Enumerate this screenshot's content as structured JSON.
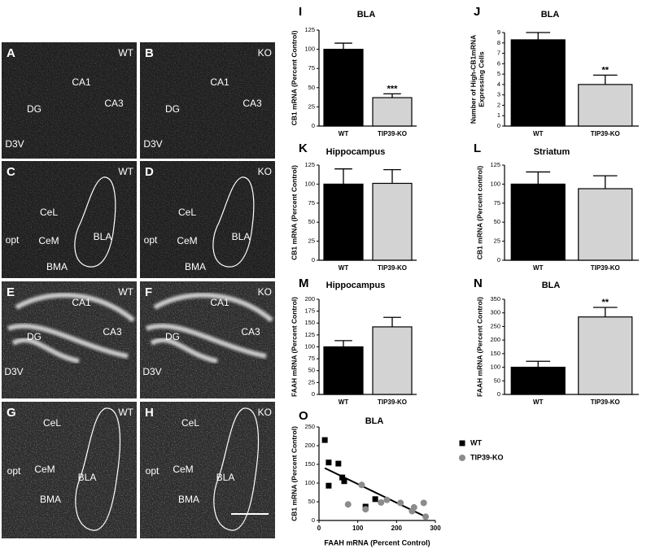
{
  "panels": [
    {
      "letter": "A",
      "genotype": "WT",
      "labels": [
        "CA1",
        "CA3",
        "DG",
        "D3V"
      ]
    },
    {
      "letter": "B",
      "genotype": "KO",
      "labels": [
        "CA1",
        "CA3",
        "DG",
        "D3V"
      ]
    },
    {
      "letter": "C",
      "genotype": "WT",
      "labels": [
        "CeL",
        "CeM",
        "BLA",
        "BMA",
        "opt"
      ]
    },
    {
      "letter": "D",
      "genotype": "KO",
      "labels": [
        "CeL",
        "CeM",
        "BLA",
        "BMA",
        "opt"
      ]
    },
    {
      "letter": "E",
      "genotype": "WT",
      "labels": [
        "CA1",
        "CA3",
        "DG",
        "D3V"
      ]
    },
    {
      "letter": "F",
      "genotype": "KO",
      "labels": [
        "CA1",
        "CA3",
        "DG",
        "D3V"
      ]
    },
    {
      "letter": "G",
      "genotype": "WT",
      "labels": [
        "CeL",
        "CeM",
        "BLA",
        "BMA",
        "opt"
      ]
    },
    {
      "letter": "H",
      "genotype": "KO",
      "labels": [
        "CeL",
        "CeM",
        "BLA",
        "BMA",
        "opt"
      ]
    }
  ],
  "chart_data": [
    {
      "type": "bar",
      "label": "I",
      "title": "BLA",
      "ylabel": "CB1 mRNA (Percent Control)",
      "categories": [
        "WT",
        "TIP39-KO"
      ],
      "values": [
        100,
        37
      ],
      "errors": [
        8,
        5
      ],
      "colors": [
        "#000000",
        "#d3d3d3"
      ],
      "value_annotations": [
        null,
        "***"
      ],
      "ylim": [
        0,
        125
      ],
      "yticks": [
        0,
        25,
        50,
        75,
        100,
        125
      ]
    },
    {
      "type": "bar",
      "label": "J",
      "title": "BLA",
      "ylabel": [
        "Number of High-CB1mRNA",
        "Expressing Cells"
      ],
      "categories": [
        "WT",
        "TIP39-KO"
      ],
      "values": [
        8.3,
        4.0
      ],
      "errors": [
        0.7,
        0.9
      ],
      "colors": [
        "#000000",
        "#d3d3d3"
      ],
      "value_annotations": [
        null,
        "**"
      ],
      "ylim": [
        0,
        9
      ],
      "yticks": [
        0,
        1,
        2,
        3,
        4,
        5,
        6,
        7,
        8,
        9
      ]
    },
    {
      "type": "bar",
      "label": "K",
      "title": "Hippocampus",
      "ylabel": "CB1 mRNA (Percent Control)",
      "categories": [
        "WT",
        "TIP39-KO"
      ],
      "values": [
        100,
        101
      ],
      "errors": [
        20,
        18
      ],
      "colors": [
        "#000000",
        "#d3d3d3"
      ],
      "ylim": [
        0,
        125
      ],
      "yticks": [
        0,
        25,
        50,
        75,
        100,
        125
      ]
    },
    {
      "type": "bar",
      "label": "L",
      "title": "Striatum",
      "ylabel": "CB1 mRNA (Percent control)",
      "categories": [
        "WT",
        "TIP39-KO"
      ],
      "values": [
        100,
        94
      ],
      "errors": [
        16,
        17
      ],
      "colors": [
        "#000000",
        "#d3d3d3"
      ],
      "ylim": [
        0,
        125
      ],
      "yticks": [
        0,
        25,
        50,
        75,
        100,
        125
      ]
    },
    {
      "type": "bar",
      "label": "M",
      "title": "Hippocampus",
      "ylabel": "FAAH mRNA (Percent Control)",
      "categories": [
        "WT",
        "TIP39-KO"
      ],
      "values": [
        100,
        142
      ],
      "errors": [
        13,
        20
      ],
      "colors": [
        "#000000",
        "#d3d3d3"
      ],
      "ylim": [
        0,
        200
      ],
      "yticks": [
        0,
        25,
        50,
        75,
        100,
        125,
        150,
        175,
        200
      ]
    },
    {
      "type": "bar",
      "label": "N",
      "title": "BLA",
      "ylabel": "FAAH mRNA (Percent Control)",
      "categories": [
        "WT",
        "TIP39-KO"
      ],
      "values": [
        100,
        285
      ],
      "errors": [
        22,
        35
      ],
      "colors": [
        "#000000",
        "#d3d3d3"
      ],
      "value_annotations": [
        null,
        "**"
      ],
      "ylim": [
        0,
        350
      ],
      "yticks": [
        0,
        50,
        100,
        150,
        200,
        250,
        300,
        350
      ]
    },
    {
      "type": "scatter",
      "label": "O",
      "title": "BLA",
      "xlabel": "FAAH mRNA (Percent Control)",
      "ylabel": "CB1 mRNA (Percent Control)",
      "xlim": [
        0,
        300
      ],
      "xticks": [
        0,
        100,
        200,
        300
      ],
      "ylim": [
        0,
        250
      ],
      "yticks": [
        0,
        50,
        100,
        150,
        200,
        250
      ],
      "series": [
        {
          "name": "WT",
          "color": "#000000",
          "marker": "square",
          "x": [
            15,
            25,
            25,
            50,
            60,
            65,
            120,
            145
          ],
          "y": [
            215,
            155,
            93,
            152,
            115,
            105,
            37,
            57
          ]
        },
        {
          "name": "TIP39-KO",
          "color": "#8c8c8c",
          "marker": "circle",
          "x": [
            75,
            110,
            120,
            160,
            175,
            210,
            240,
            245,
            270,
            275
          ],
          "y": [
            43,
            95,
            30,
            48,
            55,
            47,
            25,
            35,
            47,
            10
          ]
        }
      ],
      "fit": {
        "x": [
          15,
          275
        ],
        "y": [
          140,
          10
        ]
      }
    }
  ]
}
